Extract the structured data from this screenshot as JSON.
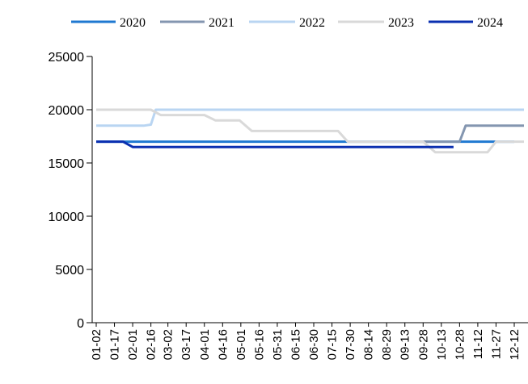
{
  "chart_data": {
    "type": "line",
    "title": "",
    "xlabel": "",
    "ylabel": "",
    "ylim": [
      0,
      25000
    ],
    "yticks": [
      0,
      5000,
      10000,
      15000,
      20000,
      25000
    ],
    "ytick_labels": [
      "0",
      "5000",
      "10000",
      "15000",
      "20000",
      "25000"
    ],
    "categories": [
      "01-02",
      "01-17",
      "02-01",
      "02-16",
      "03-02",
      "03-17",
      "04-01",
      "04-16",
      "05-01",
      "05-16",
      "05-31",
      "06-15",
      "06-30",
      "07-15",
      "07-30",
      "08-14",
      "08-29",
      "09-13",
      "09-28",
      "10-13",
      "10-28",
      "11-12",
      "11-27",
      "12-12"
    ],
    "grid": false,
    "legend_position": "top",
    "series": [
      {
        "name": "2020",
        "color": "#1f78d1",
        "points": [
          [
            "01-02",
            17000
          ],
          [
            "12-12",
            17000
          ]
        ]
      },
      {
        "name": "2021",
        "color": "#8496b0",
        "points": [
          [
            "09-13",
            17000
          ],
          [
            "10-28",
            17000
          ],
          [
            "11-02",
            18500
          ],
          [
            "12-12",
            18500
          ],
          [
            "12-20",
            18500
          ]
        ]
      },
      {
        "name": "2022",
        "color": "#b9d5f2",
        "points": [
          [
            "01-02",
            18500
          ],
          [
            "02-10",
            18500
          ],
          [
            "02-16",
            18600
          ],
          [
            "02-20",
            20000
          ],
          [
            "12-20",
            20000
          ]
        ]
      },
      {
        "name": "2023",
        "color": "#d9d9d9",
        "points": [
          [
            "01-02",
            20000
          ],
          [
            "02-16",
            20000
          ],
          [
            "02-24",
            19500
          ],
          [
            "04-01",
            19500
          ],
          [
            "04-10",
            19000
          ],
          [
            "04-30",
            19000
          ],
          [
            "05-10",
            18000
          ],
          [
            "07-20",
            18000
          ],
          [
            "07-28",
            17000
          ],
          [
            "09-28",
            17000
          ],
          [
            "10-08",
            16000
          ],
          [
            "11-20",
            16000
          ],
          [
            "11-27",
            17000
          ],
          [
            "12-20",
            17000
          ]
        ]
      },
      {
        "name": "2024",
        "color": "#0a2fb0",
        "points": [
          [
            "01-02",
            17000
          ],
          [
            "01-24",
            17000
          ],
          [
            "02-01",
            16500
          ],
          [
            "10-23",
            16500
          ]
        ]
      }
    ]
  }
}
